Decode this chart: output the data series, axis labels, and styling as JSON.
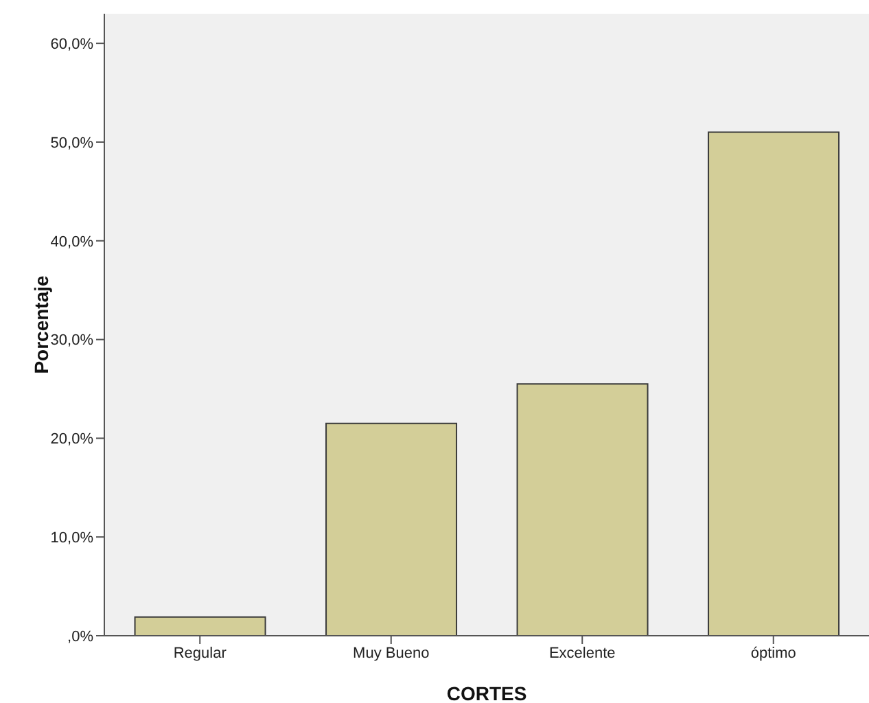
{
  "chart_data": {
    "type": "bar",
    "xlabel": "CORTES",
    "ylabel": "Porcentaje",
    "categories": [
      "Regular",
      "Muy Bueno",
      "Excelente",
      "óptimo"
    ],
    "values": [
      1.9,
      21.5,
      25.5,
      51.0
    ],
    "color": "#d3ce98",
    "ylim": [
      0,
      63
    ],
    "yticks": [
      {
        "value": 0,
        "label": ",0%"
      },
      {
        "value": 10,
        "label": "10,0%"
      },
      {
        "value": 20,
        "label": "20,0%"
      },
      {
        "value": 30,
        "label": "30,0%"
      },
      {
        "value": 40,
        "label": "40,0%"
      },
      {
        "value": 50,
        "label": "50,0%"
      },
      {
        "value": 60,
        "label": "60,0%"
      }
    ],
    "grid": false,
    "legend": false
  }
}
